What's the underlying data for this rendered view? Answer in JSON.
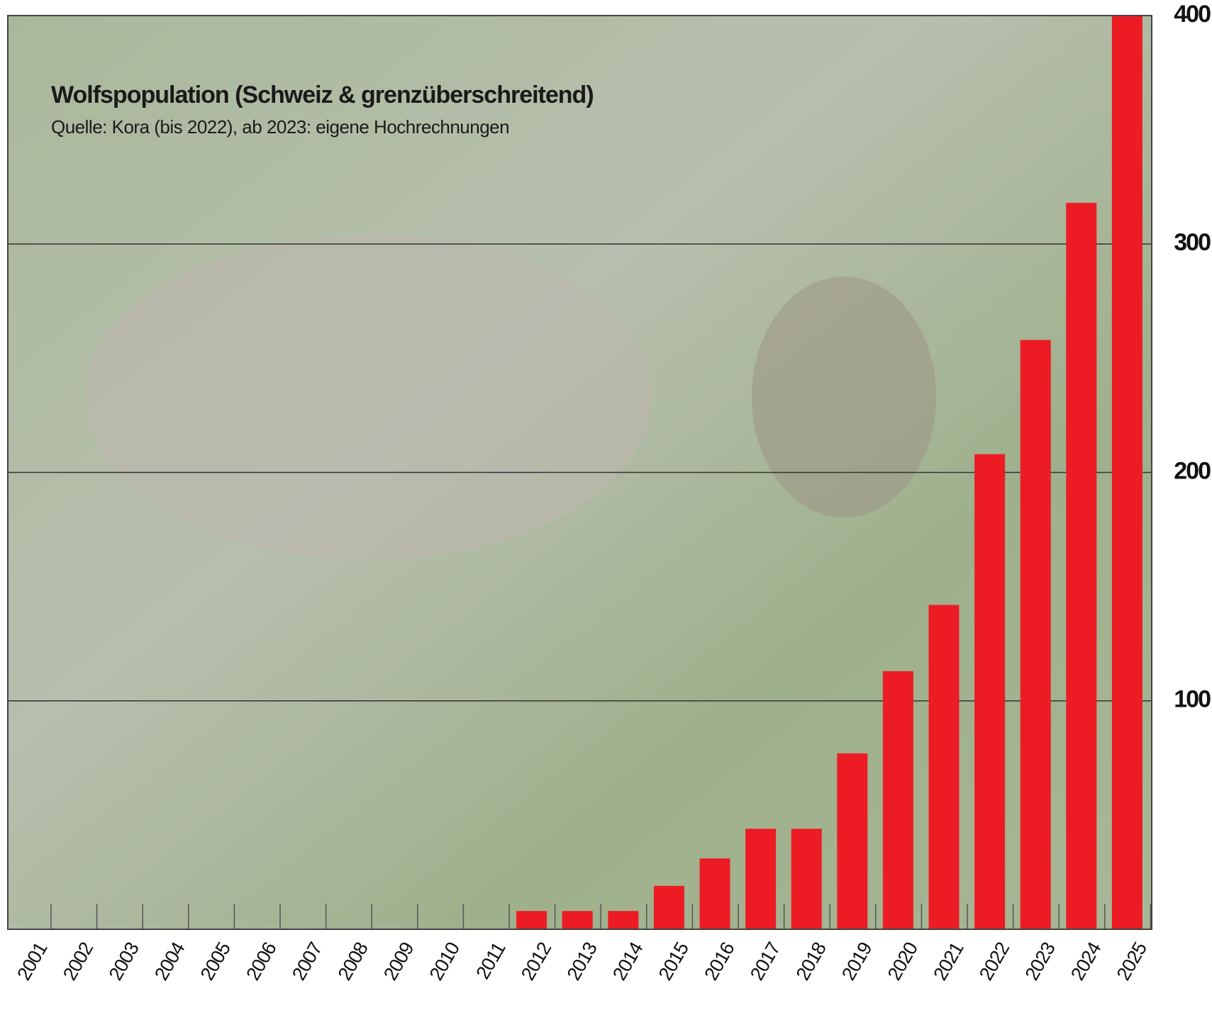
{
  "chart_data": {
    "type": "bar",
    "title": "Wolfspopulation (Schweiz & grenzüberschreitend)",
    "subtitle": "Quelle: Kora (bis 2022), ab 2023: eigene Hochrechnungen",
    "categories": [
      "2001",
      "2002",
      "2003",
      "2004",
      "2005",
      "2006",
      "2007",
      "2008",
      "2009",
      "2010",
      "2011",
      "2012",
      "2013",
      "2014",
      "2015",
      "2016",
      "2017",
      "2018",
      "2019",
      "2020",
      "2021",
      "2022",
      "2023",
      "2024",
      "2025"
    ],
    "values": [
      0,
      0,
      0,
      0,
      0,
      0,
      0,
      0,
      0,
      0,
      0,
      8,
      8,
      8,
      19,
      31,
      44,
      44,
      77,
      113,
      142,
      208,
      258,
      318,
      400
    ],
    "color": "#ed1c24",
    "ylim": [
      0,
      400
    ],
    "yticks": [
      100,
      200,
      300,
      400
    ],
    "grid": true
  }
}
